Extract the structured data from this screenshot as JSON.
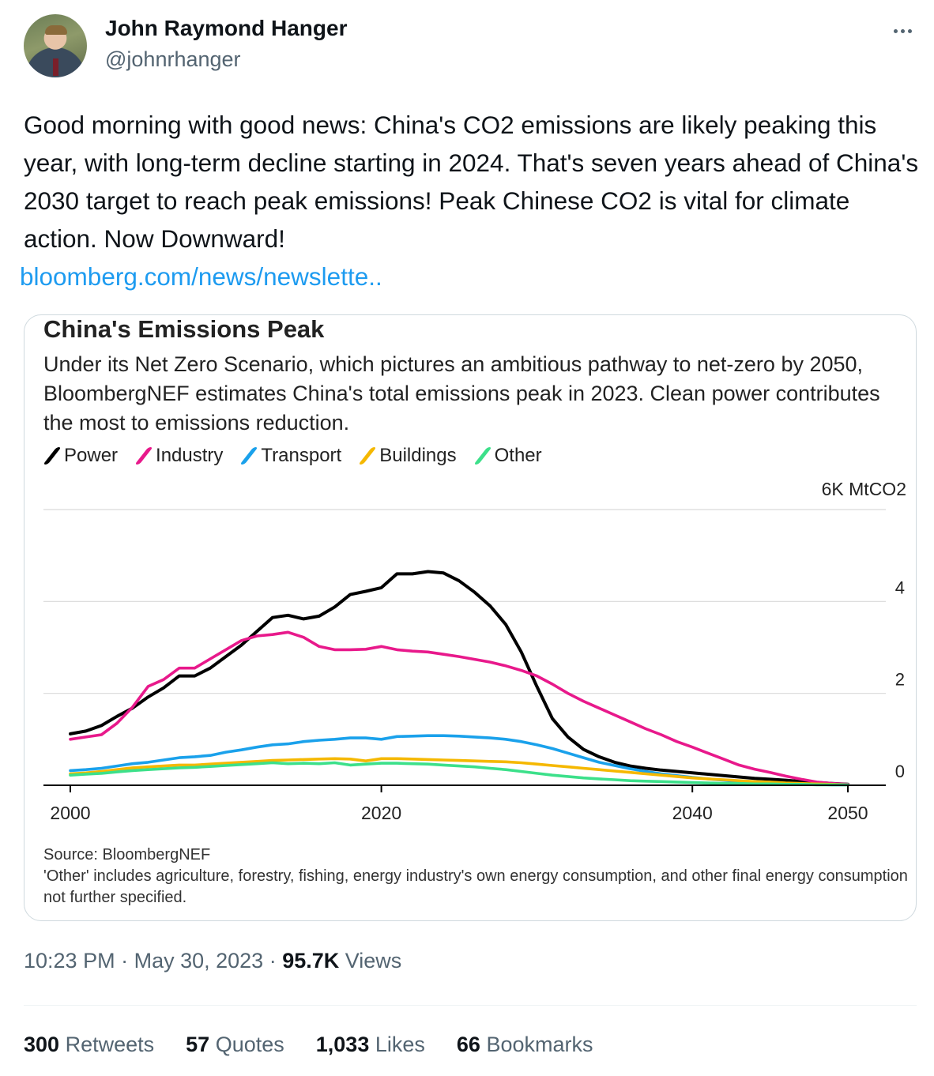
{
  "author": {
    "name": "John Raymond Hanger",
    "handle": "@johnrhanger"
  },
  "tweet": {
    "text": "Good morning with good news: China's CO2 emissions are likely peaking this year, with long-term decline starting in 2024. That's seven years ahead of China's 2030 target to reach peak emissions! Peak Chinese CO2 is vital for climate action. Now Downward!",
    "link": "bloomberg.com/news/newslette.."
  },
  "meta": {
    "time": "10:23 PM",
    "date": "May 30, 2023",
    "views_count": "95.7K",
    "views_label": "Views"
  },
  "stats": {
    "retweets_count": "300",
    "retweets_label": "Retweets",
    "quotes_count": "57",
    "quotes_label": "Quotes",
    "likes_count": "1,033",
    "likes_label": "Likes",
    "bookmarks_count": "66",
    "bookmarks_label": "Bookmarks"
  },
  "chart_data": {
    "type": "line",
    "title": "China's Emissions Peak",
    "subtitle": "Under its Net Zero Scenario, which pictures an ambitious pathway to net-zero by 2050, BloombergNEF estimates China's total emissions peak in 2023. Clean power contributes the most to emissions reduction.",
    "ylabel": "6K MtCO2",
    "ylim": [
      0,
      6
    ],
    "xlim": [
      2000,
      2050
    ],
    "x_ticks": [
      "2000",
      "2020",
      "2040",
      "2050"
    ],
    "x_tick_values": [
      2000,
      2020,
      2040,
      2050
    ],
    "y_ticks": [
      "0",
      "2",
      "4"
    ],
    "y_tick_values": [
      0,
      2,
      4,
      6
    ],
    "grid": true,
    "source": "Source: BloombergNEF",
    "note": "'Other' includes agriculture, forestry, fishing, energy industry's own energy consumption, and other final energy consumption not further specified.",
    "x": [
      2000,
      2001,
      2002,
      2003,
      2004,
      2005,
      2006,
      2007,
      2008,
      2009,
      2010,
      2011,
      2012,
      2013,
      2014,
      2015,
      2016,
      2017,
      2018,
      2019,
      2020,
      2021,
      2022,
      2023,
      2024,
      2025,
      2026,
      2027,
      2028,
      2029,
      2030,
      2031,
      2032,
      2033,
      2034,
      2035,
      2036,
      2037,
      2038,
      2039,
      2040,
      2041,
      2042,
      2043,
      2044,
      2045,
      2046,
      2047,
      2048,
      2049,
      2050
    ],
    "series": [
      {
        "name": "Power",
        "color": "#000000",
        "values": [
          1.12,
          1.18,
          1.3,
          1.5,
          1.68,
          1.92,
          2.12,
          2.38,
          2.38,
          2.55,
          2.8,
          3.05,
          3.35,
          3.65,
          3.7,
          3.62,
          3.68,
          3.88,
          4.15,
          4.22,
          4.3,
          4.6,
          4.6,
          4.65,
          4.62,
          4.45,
          4.2,
          3.9,
          3.5,
          2.9,
          2.15,
          1.45,
          1.05,
          0.78,
          0.62,
          0.5,
          0.42,
          0.37,
          0.33,
          0.3,
          0.27,
          0.24,
          0.21,
          0.18,
          0.15,
          0.13,
          0.11,
          0.08,
          0.06,
          0.04,
          0.02
        ]
      },
      {
        "name": "Industry",
        "color": "#e8198b",
        "values": [
          1.0,
          1.05,
          1.1,
          1.35,
          1.7,
          2.15,
          2.3,
          2.55,
          2.55,
          2.75,
          2.95,
          3.15,
          3.25,
          3.28,
          3.33,
          3.22,
          3.02,
          2.95,
          2.95,
          2.96,
          3.02,
          2.95,
          2.92,
          2.9,
          2.85,
          2.8,
          2.74,
          2.68,
          2.6,
          2.5,
          2.38,
          2.2,
          2.0,
          1.83,
          1.68,
          1.53,
          1.38,
          1.23,
          1.1,
          0.95,
          0.83,
          0.7,
          0.57,
          0.44,
          0.35,
          0.28,
          0.2,
          0.13,
          0.07,
          0.04,
          0.02
        ]
      },
      {
        "name": "Transport",
        "color": "#1aa1eb",
        "values": [
          0.32,
          0.34,
          0.37,
          0.42,
          0.47,
          0.5,
          0.55,
          0.6,
          0.62,
          0.65,
          0.72,
          0.77,
          0.83,
          0.88,
          0.9,
          0.95,
          0.98,
          1.0,
          1.03,
          1.03,
          1.0,
          1.06,
          1.07,
          1.08,
          1.08,
          1.07,
          1.05,
          1.03,
          1.0,
          0.95,
          0.88,
          0.8,
          0.7,
          0.6,
          0.5,
          0.43,
          0.36,
          0.3,
          0.25,
          0.21,
          0.17,
          0.14,
          0.11,
          0.08,
          0.06,
          0.05,
          0.04,
          0.03,
          0.02,
          0.01,
          0.01
        ]
      },
      {
        "name": "Buildings",
        "color": "#f5b800",
        "values": [
          0.25,
          0.27,
          0.3,
          0.34,
          0.38,
          0.4,
          0.42,
          0.44,
          0.44,
          0.46,
          0.48,
          0.5,
          0.52,
          0.54,
          0.55,
          0.56,
          0.57,
          0.58,
          0.57,
          0.53,
          0.58,
          0.58,
          0.57,
          0.56,
          0.55,
          0.54,
          0.53,
          0.52,
          0.51,
          0.49,
          0.46,
          0.43,
          0.4,
          0.37,
          0.34,
          0.31,
          0.28,
          0.25,
          0.22,
          0.19,
          0.16,
          0.14,
          0.12,
          0.1,
          0.08,
          0.07,
          0.05,
          0.04,
          0.03,
          0.02,
          0.01
        ]
      },
      {
        "name": "Other",
        "color": "#3ce08a",
        "values": [
          0.22,
          0.24,
          0.26,
          0.29,
          0.32,
          0.34,
          0.36,
          0.38,
          0.39,
          0.41,
          0.43,
          0.45,
          0.47,
          0.49,
          0.47,
          0.48,
          0.47,
          0.49,
          0.44,
          0.46,
          0.48,
          0.48,
          0.47,
          0.46,
          0.44,
          0.42,
          0.4,
          0.37,
          0.34,
          0.3,
          0.26,
          0.22,
          0.19,
          0.16,
          0.14,
          0.12,
          0.1,
          0.09,
          0.08,
          0.07,
          0.06,
          0.05,
          0.04,
          0.04,
          0.03,
          0.03,
          0.02,
          0.02,
          0.01,
          0.01,
          0.01
        ]
      }
    ]
  }
}
